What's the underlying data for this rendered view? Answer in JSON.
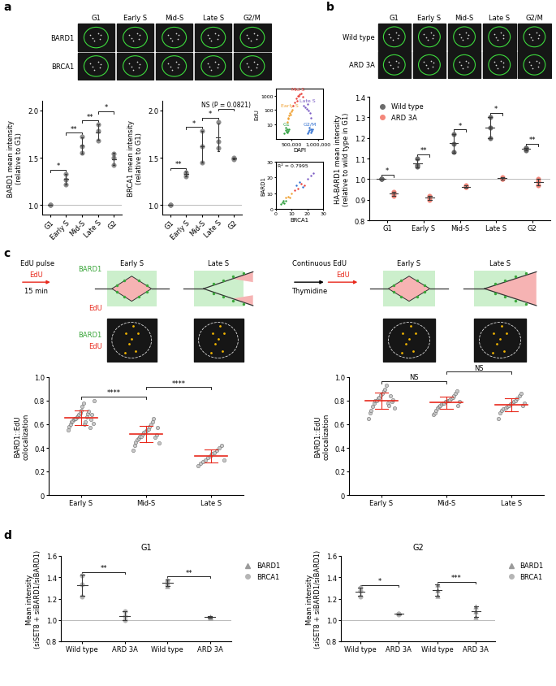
{
  "panel_labels": [
    "a",
    "b",
    "c",
    "d"
  ],
  "chart_data": [
    {
      "type": "image",
      "rows": [
        "BARD1",
        "BRCA1"
      ],
      "columns": [
        "G1",
        "Early S",
        "Mid-S",
        "Late S",
        "G2/M"
      ]
    },
    {
      "type": "dot",
      "categories": [
        "G1",
        "Early S",
        "Mid-S",
        "Late S",
        "G2"
      ],
      "color": "#8c8c8c",
      "values": [
        [
          1.0,
          1.0,
          1.0
        ],
        [
          1.22,
          1.27,
          1.33
        ],
        [
          1.55,
          1.62,
          1.72
        ],
        [
          1.68,
          1.78,
          1.85
        ],
        [
          1.42,
          1.5,
          1.54
        ]
      ],
      "ylabel": "BARD1 mean intensity\n(relative to G1)",
      "ylim": [
        0.9,
        2.1
      ],
      "yticks": [
        1.0,
        1.5,
        2.0
      ],
      "reference_line": 1.0,
      "significance": [
        {
          "between": [
            0,
            1
          ],
          "label": "*"
        },
        {
          "between": [
            1,
            2
          ],
          "label": "**"
        },
        {
          "between": [
            2,
            3
          ],
          "label": "**"
        },
        {
          "between": [
            3,
            4
          ],
          "label": "*"
        }
      ]
    },
    {
      "type": "dot",
      "categories": [
        "G1",
        "Early S",
        "Mid-S",
        "Late S",
        "G2"
      ],
      "color": "#8c8c8c",
      "values": [
        [
          1.0,
          1.0,
          1.0
        ],
        [
          1.3,
          1.33,
          1.35
        ],
        [
          1.45,
          1.62,
          1.78
        ],
        [
          1.6,
          1.67,
          1.88
        ],
        [
          1.48,
          1.49,
          1.5
        ]
      ],
      "ylabel": "BRCA1 mean intensity\n(relative to G1)",
      "ylim": [
        0.9,
        2.1
      ],
      "yticks": [
        1.0,
        1.5,
        2.0
      ],
      "reference_line": 1.0,
      "significance": [
        {
          "between": [
            0,
            1
          ],
          "label": "**"
        },
        {
          "between": [
            1,
            2
          ],
          "label": "*"
        },
        {
          "between": [
            2,
            3
          ],
          "label": "*"
        },
        {
          "between": [
            3,
            4
          ],
          "label": "NS (P = 0.0821)"
        }
      ]
    },
    {
      "type": "scatter",
      "xlabel": "DAPI",
      "ylabel": "EdU",
      "log": "y",
      "xlim": [
        200000,
        1100000
      ],
      "xticks": [
        {
          "value": 500000,
          "label": "500,000"
        },
        {
          "value": 1000000,
          "label": "1,000,000"
        }
      ],
      "ylim": [
        1,
        3000
      ],
      "yticks": [
        10,
        100,
        1000
      ],
      "series": [
        {
          "name": "G1",
          "color": "#2e9e3e",
          "x": [
            360000,
            380000,
            400000,
            410000,
            430000,
            450000,
            390000,
            420000
          ],
          "y": [
            2.5,
            4,
            3,
            5,
            3.5,
            4.5,
            6,
            2.8
          ]
        },
        {
          "name": "Early S",
          "color": "#f0a030",
          "x": [
            410000,
            430000,
            450000,
            470000,
            490000,
            510000,
            440000,
            480000
          ],
          "y": [
            15,
            25,
            40,
            60,
            80,
            110,
            30,
            50
          ]
        },
        {
          "name": "Mid-S",
          "color": "#e8413a",
          "x": [
            530000,
            560000,
            590000,
            620000,
            650000,
            680000,
            710000,
            600000,
            640000
          ],
          "y": [
            200,
            350,
            600,
            900,
            1200,
            1400,
            800,
            450,
            1000
          ]
        },
        {
          "name": "Late S",
          "color": "#7a5cc4",
          "x": [
            730000,
            760000,
            790000,
            820000,
            850000,
            870000,
            800000
          ],
          "y": [
            200,
            150,
            120,
            90,
            60,
            30,
            250
          ]
        },
        {
          "name": "G2/M",
          "color": "#2f6fd0",
          "x": [
            800000,
            820000,
            840000,
            860000,
            880000,
            900000,
            830000,
            870000
          ],
          "y": [
            2.5,
            3,
            4,
            5,
            3.5,
            4.5,
            6,
            2.8
          ]
        }
      ]
    },
    {
      "type": "scatter",
      "xlabel": "BRCA1",
      "ylabel": "BARD1",
      "xlim": [
        0,
        30
      ],
      "xticks": [
        0,
        10,
        20,
        30
      ],
      "ylim": [
        0,
        30
      ],
      "yticks": [
        0,
        10,
        20,
        30
      ],
      "annotation": "R² = 0.7995",
      "series": [
        {
          "color": "#2e9e3e",
          "x": [
            3,
            4,
            5,
            4.5,
            6
          ],
          "y": [
            3,
            4,
            3.5,
            5,
            5
          ]
        },
        {
          "color": "#f0a030",
          "x": [
            6,
            8,
            9,
            10
          ],
          "y": [
            7,
            8,
            7,
            10
          ]
        },
        {
          "color": "#e8413a",
          "x": [
            12,
            14,
            16,
            18
          ],
          "y": [
            12,
            13,
            16,
            15
          ]
        },
        {
          "color": "#7a5cc4",
          "x": [
            20,
            22,
            24
          ],
          "y": [
            19,
            21,
            23
          ]
        },
        {
          "color": "#2f6fd0",
          "x": [
            15,
            17,
            13
          ],
          "y": [
            17,
            14,
            15
          ]
        }
      ]
    },
    {
      "type": "image",
      "rows": [
        "Wild type",
        "ARD 3A"
      ],
      "columns": [
        "G1",
        "Early S",
        "Mid-S",
        "Late S",
        "G2/M"
      ]
    },
    {
      "type": "dot",
      "categories": [
        "G1",
        "Early S",
        "Mid-S",
        "Late S",
        "G2"
      ],
      "series": [
        {
          "name": "Wild type",
          "color": "#6b6b6b",
          "marker": "circle",
          "values": [
            [
              1.0,
              1.0,
              1.0
            ],
            [
              1.06,
              1.07,
              1.1
            ],
            [
              1.13,
              1.17,
              1.22
            ],
            [
              1.2,
              1.25,
              1.3
            ],
            [
              1.14,
              1.15,
              1.15
            ]
          ]
        },
        {
          "name": "ARD 3A",
          "color": "#f4877a",
          "marker": "circle",
          "values": [
            [
              0.92,
              0.93,
              0.94
            ],
            [
              0.9,
              0.91,
              0.92
            ],
            [
              0.96,
              0.96,
              0.97
            ],
            [
              1.0,
              1.0,
              1.01
            ],
            [
              0.97,
              0.99,
              1.0
            ]
          ]
        }
      ],
      "legend": "upper left",
      "ylabel": "HA-BARD1 mean intensity\n(relative to wild type in G1)",
      "ylim": [
        0.8,
        1.4
      ],
      "yticks": [
        0.8,
        0.9,
        1.0,
        1.1,
        1.2,
        1.3,
        1.4
      ],
      "reference_line": 1.0,
      "significance": [
        {
          "category": 0,
          "label": "*"
        },
        {
          "category": 1,
          "label": "**"
        },
        {
          "category": 2,
          "label": "*"
        },
        {
          "category": 3,
          "label": "*"
        },
        {
          "category": 4,
          "label": "**"
        }
      ]
    },
    {
      "type": "schematic",
      "title": "EdU pulse",
      "steps": [
        {
          "text": "EdU",
          "note": "15 min",
          "color": "#e8291c"
        }
      ],
      "stages": [
        "Early S",
        "Late S"
      ],
      "labels": [
        {
          "text": "BARD1",
          "color": "#3aa63a"
        },
        {
          "text": "EdU",
          "color": "#e8291c"
        }
      ],
      "channels": [
        {
          "text": "BARD1",
          "color": "#3aa63a"
        },
        {
          "text": "EdU",
          "color": "#e8291c"
        }
      ]
    },
    {
      "type": "schematic",
      "title": "Continuous EdU",
      "steps": [
        {
          "note": "Thymidine",
          "color": "#000000"
        },
        {
          "text": "EdU",
          "color": "#e8291c"
        }
      ],
      "stages": [
        "Early S",
        "Late S"
      ]
    },
    {
      "type": "dot",
      "categories": [
        "Early S",
        "Mid-S",
        "Late S"
      ],
      "color": "#c8c8c8",
      "values": [
        [
          0.55,
          0.58,
          0.6,
          0.62,
          0.63,
          0.64,
          0.65,
          0.65,
          0.66,
          0.67,
          0.68,
          0.7,
          0.72,
          0.75,
          0.78,
          0.6,
          0.62,
          0.66,
          0.69,
          0.71,
          0.57,
          0.64,
          0.68,
          0.61,
          0.8
        ],
        [
          0.38,
          0.42,
          0.45,
          0.47,
          0.48,
          0.5,
          0.5,
          0.52,
          0.53,
          0.54,
          0.55,
          0.56,
          0.58,
          0.6,
          0.62,
          0.65,
          0.49,
          0.51,
          0.57,
          0.44
        ],
        [
          0.25,
          0.27,
          0.28,
          0.3,
          0.32,
          0.33,
          0.35,
          0.36,
          0.38,
          0.4,
          0.42,
          0.3
        ]
      ],
      "ylabel": "BARD1::EdU\ncolocalization",
      "ylim": [
        0,
        1.0
      ],
      "yticks": [
        0,
        0.2,
        0.4,
        0.6,
        0.8,
        1.0
      ],
      "significance": [
        {
          "between": [
            0,
            1
          ],
          "label": "****"
        },
        {
          "between": [
            1,
            2
          ],
          "label": "****"
        }
      ]
    },
    {
      "type": "dot",
      "categories": [
        "Early S",
        "Mid-S",
        "Late S"
      ],
      "color": "#c8c8c8",
      "values": [
        [
          0.65,
          0.7,
          0.72,
          0.75,
          0.78,
          0.8,
          0.8,
          0.82,
          0.83,
          0.85,
          0.86,
          0.88,
          0.9,
          0.93,
          0.78,
          0.76,
          0.84,
          0.79,
          0.81,
          0.74
        ],
        [
          0.68,
          0.7,
          0.72,
          0.74,
          0.75,
          0.76,
          0.77,
          0.78,
          0.78,
          0.79,
          0.8,
          0.8,
          0.81,
          0.82,
          0.83,
          0.84,
          0.86,
          0.88,
          0.76,
          0.79
        ],
        [
          0.65,
          0.7,
          0.72,
          0.73,
          0.74,
          0.75,
          0.76,
          0.77,
          0.78,
          0.79,
          0.8,
          0.82,
          0.84,
          0.86,
          0.76,
          0.78
        ]
      ],
      "ylabel": "BARD1::EdU\ncolocalization",
      "ylim": [
        0,
        1.0
      ],
      "yticks": [
        0,
        0.2,
        0.4,
        0.6,
        0.8,
        1.0
      ],
      "significance": [
        {
          "between": [
            0,
            1
          ],
          "label": "NS"
        },
        {
          "between": [
            1,
            2
          ],
          "label": "NS"
        }
      ]
    },
    {
      "type": "dot",
      "title": "G1",
      "categories": [
        "Wild type",
        "ARD 3A",
        "Wild type",
        "ARD 3A"
      ],
      "series": [
        {
          "name": "BARD1",
          "color": "#9a9a9a",
          "marker": "triangle",
          "values": [
            null,
            null,
            [
              1.32,
              1.35,
              1.38
            ],
            [
              1.02,
              1.03,
              1.03
            ]
          ]
        },
        {
          "name": "BRCA1",
          "color": "#b5b5b5",
          "marker": "circle",
          "values": [
            [
              1.22,
              1.33,
              1.42
            ],
            [
              1.0,
              1.04,
              1.08
            ],
            null,
            null
          ]
        }
      ],
      "legend": "right",
      "ylabel": "Mean intensity\n(siSET8 + siBARD1/siBARD1)",
      "ylim": [
        0.8,
        1.6
      ],
      "yticks": [
        0.8,
        1.0,
        1.2,
        1.4,
        1.6
      ],
      "reference_line": 1.0,
      "significance": [
        {
          "between": [
            0,
            1
          ],
          "label": "**"
        },
        {
          "between": [
            2,
            3
          ],
          "label": "**"
        }
      ]
    },
    {
      "type": "dot",
      "title": "G2",
      "categories": [
        "Wild type",
        "ARD 3A",
        "Wild type",
        "ARD 3A"
      ],
      "series": [
        {
          "name": "BARD1",
          "color": "#9a9a9a",
          "marker": "triangle",
          "values": [
            null,
            null,
            [
              1.23,
              1.28,
              1.33
            ],
            [
              1.03,
              1.08,
              1.13
            ]
          ]
        },
        {
          "name": "BRCA1",
          "color": "#b5b5b5",
          "marker": "circle",
          "values": [
            [
              1.22,
              1.27,
              1.3
            ],
            [
              1.05,
              1.06,
              1.06
            ],
            null,
            null
          ]
        }
      ],
      "legend": "right",
      "ylabel": "Mean intensity\n(siSET8 + siBARD1/siBARD1)",
      "ylim": [
        0.8,
        1.6
      ],
      "yticks": [
        0.8,
        1.0,
        1.2,
        1.4,
        1.6
      ],
      "reference_line": 1.0,
      "significance": [
        {
          "between": [
            0,
            1
          ],
          "label": "*"
        },
        {
          "between": [
            2,
            3
          ],
          "label": "***"
        }
      ]
    }
  ]
}
